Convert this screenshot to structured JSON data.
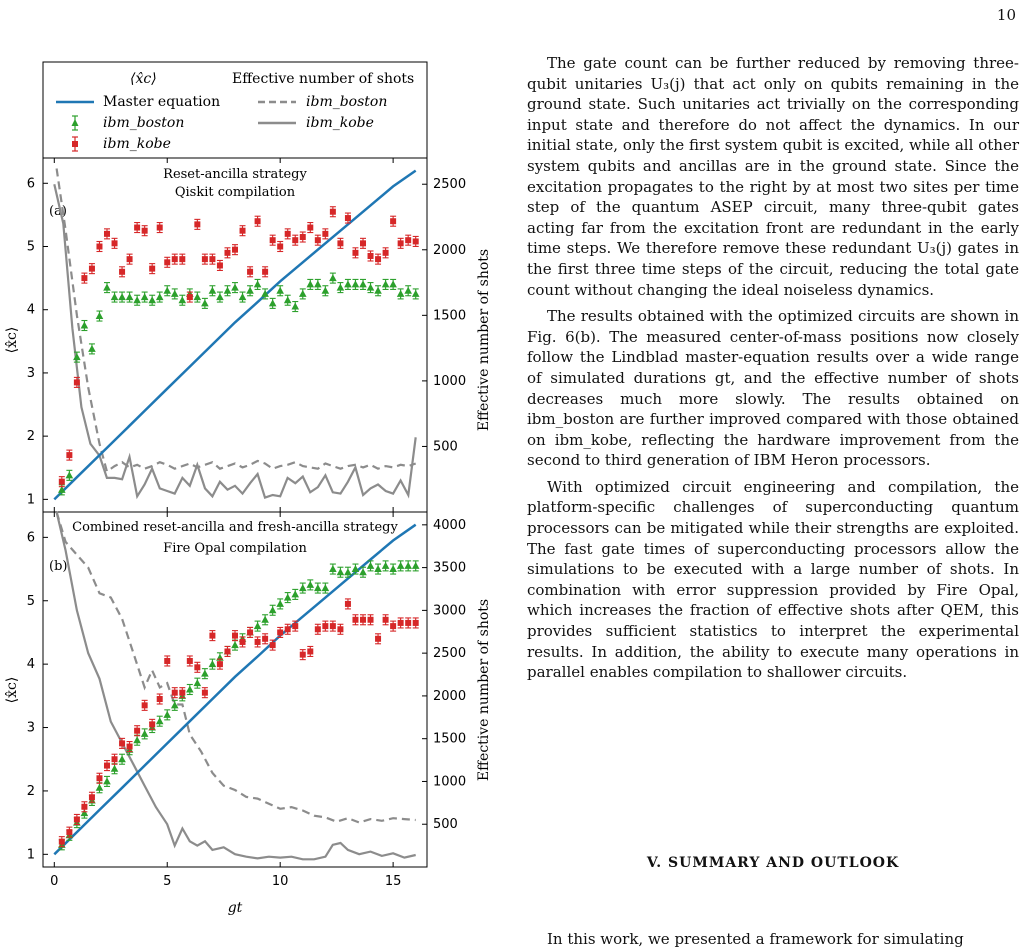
{
  "page_number": "10",
  "legend": {
    "header_left": "⟨x̂c⟩",
    "header_right": "Effective number of shots",
    "entries": [
      {
        "label": "Master equation",
        "color": "#1f77b4",
        "style": "line"
      },
      {
        "label": "ibm_boston",
        "color": "#2ca02c",
        "style": "triangle"
      },
      {
        "label": "ibm_kobe",
        "color": "#d62728",
        "style": "square"
      },
      {
        "label": "ibm_boston",
        "color": "#8c8c8c",
        "style": "dashed"
      },
      {
        "label": "ibm_kobe",
        "color": "#8c8c8c",
        "style": "solid"
      }
    ]
  },
  "chart_data": [
    {
      "type": "scatter",
      "panel_label": "(a)",
      "title": "Reset-ancilla strategy",
      "subtitle": "Qiskit compilation",
      "xlabel": "",
      "ylabel": "⟨x̂c⟩",
      "y2label": "Effective number of shots",
      "xlim": [
        -0.5,
        16.5
      ],
      "ylim": [
        0.8,
        6.4
      ],
      "y2lim": [
        0,
        2700
      ],
      "yticks": [
        1,
        2,
        3,
        4,
        5,
        6
      ],
      "y2ticks": [
        500,
        1000,
        1500,
        2000,
        2500
      ],
      "x": [
        0.333,
        0.667,
        1.0,
        1.333,
        1.667,
        2.0,
        2.333,
        2.667,
        3.0,
        3.333,
        3.667,
        4.0,
        4.333,
        4.667,
        5.0,
        5.333,
        5.667,
        6.0,
        6.333,
        6.667,
        7.0,
        7.333,
        7.667,
        8.0,
        8.333,
        8.667,
        9.0,
        9.333,
        9.667,
        10.0,
        10.333,
        10.667,
        11.0,
        11.333,
        11.667,
        12.0,
        12.333,
        12.667,
        13.0,
        13.333,
        13.667,
        14.0,
        14.333,
        14.667,
        15.0,
        15.333,
        15.667,
        16.0
      ],
      "series": [
        {
          "name": "ibm_boston",
          "axis": "left",
          "values": [
            1.15,
            1.38,
            3.25,
            3.75,
            3.38,
            3.9,
            4.35,
            4.2,
            4.2,
            4.2,
            4.15,
            4.2,
            4.15,
            4.2,
            4.3,
            4.25,
            4.15,
            4.25,
            4.2,
            4.1,
            4.3,
            4.2,
            4.3,
            4.35,
            4.2,
            4.3,
            4.4,
            4.25,
            4.1,
            4.3,
            4.15,
            4.05,
            4.25,
            4.4,
            4.4,
            4.3,
            4.5,
            4.35,
            4.4,
            4.4,
            4.4,
            4.35,
            4.3,
            4.4,
            4.4,
            4.25,
            4.3,
            4.25
          ]
        },
        {
          "name": "ibm_kobe",
          "axis": "left",
          "values": [
            1.28,
            1.7,
            2.85,
            4.5,
            4.65,
            5.0,
            5.2,
            5.05,
            4.6,
            4.8,
            5.3,
            5.25,
            4.65,
            5.3,
            4.75,
            4.8,
            4.8,
            4.2,
            5.35,
            4.8,
            4.8,
            4.7,
            4.9,
            4.95,
            5.25,
            4.6,
            5.4,
            4.6,
            5.1,
            5.0,
            5.2,
            5.1,
            5.15,
            5.3,
            5.1,
            5.2,
            5.55,
            5.05,
            5.45,
            4.9,
            5.05,
            4.85,
            4.8,
            4.9,
            5.4,
            5.05,
            5.1,
            5.08
          ]
        },
        {
          "name": "ibm_boston",
          "axis": "right",
          "x": [
            0.1,
            0.5,
            1.0,
            1.5,
            2.0,
            2.33,
            2.67,
            3.0,
            3.33,
            3.67,
            4.0,
            4.33,
            4.67,
            5.0,
            5.33,
            5.67,
            6.0,
            6.33,
            6.67,
            7.0,
            7.33,
            7.67,
            8.0,
            8.33,
            8.67,
            9.0,
            9.33,
            9.67,
            10.0,
            10.33,
            10.67,
            11.0,
            11.33,
            11.67,
            12.0,
            12.33,
            12.67,
            13.0,
            13.33,
            13.67,
            14.0,
            14.33,
            14.67,
            15.0,
            15.33,
            15.67,
            16.0
          ],
          "values": [
            2620,
            2150,
            1500,
            950,
            520,
            310,
            350,
            380,
            340,
            360,
            330,
            350,
            380,
            360,
            330,
            350,
            370,
            340,
            360,
            380,
            330,
            350,
            370,
            340,
            360,
            390,
            370,
            330,
            350,
            360,
            380,
            350,
            340,
            330,
            370,
            350,
            330,
            350,
            360,
            340,
            360,
            330,
            350,
            340,
            360,
            350,
            370
          ]
        },
        {
          "name": "ibm_kobe",
          "axis": "right",
          "x": [
            0.0,
            0.4,
            0.8,
            1.2,
            1.6,
            2.0,
            2.33,
            2.67,
            3.0,
            3.33,
            3.67,
            4.0,
            4.33,
            4.67,
            5.0,
            5.33,
            5.67,
            6.0,
            6.33,
            6.67,
            7.0,
            7.33,
            7.67,
            8.0,
            8.33,
            8.67,
            9.0,
            9.33,
            9.67,
            10.0,
            10.33,
            10.67,
            11.0,
            11.33,
            11.67,
            12.0,
            12.33,
            12.67,
            13.0,
            13.33,
            13.67,
            14.0,
            14.33,
            14.67,
            15.0,
            15.33,
            15.67,
            16.0
          ],
          "values": [
            2500,
            2200,
            1400,
            800,
            520,
            430,
            260,
            260,
            250,
            420,
            120,
            210,
            330,
            180,
            160,
            140,
            260,
            200,
            360,
            180,
            120,
            230,
            170,
            200,
            140,
            220,
            290,
            110,
            130,
            120,
            260,
            220,
            270,
            150,
            190,
            280,
            150,
            140,
            230,
            340,
            130,
            180,
            210,
            160,
            140,
            240,
            130,
            570
          ]
        },
        {
          "name": "Master equation",
          "axis": "left",
          "x": [
            0,
            1,
            2,
            3,
            4,
            5,
            6,
            7,
            8,
            9,
            10,
            11,
            12,
            13,
            14,
            15,
            16
          ],
          "values": [
            1.0,
            1.35,
            1.7,
            2.05,
            2.4,
            2.75,
            3.1,
            3.45,
            3.8,
            4.12,
            4.45,
            4.75,
            5.05,
            5.35,
            5.65,
            5.95,
            6.2
          ]
        }
      ]
    },
    {
      "type": "scatter",
      "panel_label": "(b)",
      "title": "Combined reset-ancilla and fresh-ancilla strategy",
      "subtitle": "Fire Opal compilation",
      "xlabel": "gt",
      "ylabel": "⟨x̂c⟩",
      "y2label": "Effective number of shots",
      "xlim": [
        -0.5,
        16.5
      ],
      "ylim": [
        0.8,
        6.4
      ],
      "y2lim": [
        0,
        4150
      ],
      "xticks": [
        0,
        5,
        10,
        15
      ],
      "yticks": [
        1,
        2,
        3,
        4,
        5,
        6
      ],
      "y2ticks": [
        500,
        1000,
        1500,
        2000,
        2500,
        3000,
        3500,
        4000
      ],
      "x": [
        0.333,
        0.667,
        1.0,
        1.333,
        1.667,
        2.0,
        2.333,
        2.667,
        3.0,
        3.333,
        3.667,
        4.0,
        4.333,
        4.667,
        5.0,
        5.333,
        5.667,
        6.0,
        6.333,
        6.667,
        7.0,
        7.333,
        7.667,
        8.0,
        8.333,
        8.667,
        9.0,
        9.333,
        9.667,
        10.0,
        10.333,
        10.667,
        11.0,
        11.333,
        11.667,
        12.0,
        12.333,
        12.667,
        13.0,
        13.333,
        13.667,
        14.0,
        14.333,
        14.667,
        15.0,
        15.333,
        15.667,
        16.0
      ],
      "series": [
        {
          "name": "ibm_boston",
          "axis": "left",
          "values": [
            1.15,
            1.3,
            1.5,
            1.65,
            1.85,
            2.05,
            2.15,
            2.35,
            2.5,
            2.65,
            2.8,
            2.9,
            3.0,
            3.1,
            3.2,
            3.35,
            3.5,
            3.6,
            3.7,
            3.85,
            4.0,
            4.1,
            4.2,
            4.3,
            4.4,
            4.5,
            4.6,
            4.7,
            4.85,
            4.95,
            5.05,
            5.1,
            5.2,
            5.25,
            5.2,
            5.2,
            5.5,
            5.45,
            5.45,
            5.5,
            5.45,
            5.55,
            5.5,
            5.55,
            5.5,
            5.55,
            5.55,
            5.55
          ]
        },
        {
          "name": "ibm_kobe",
          "axis": "left",
          "values": [
            1.2,
            1.35,
            1.55,
            1.75,
            1.9,
            2.2,
            2.4,
            2.5,
            2.75,
            2.7,
            2.95,
            3.35,
            3.05,
            3.45,
            4.05,
            3.55,
            3.55,
            4.05,
            3.95,
            3.55,
            4.45,
            4.0,
            4.2,
            4.45,
            4.35,
            4.5,
            4.35,
            4.4,
            4.3,
            4.5,
            4.55,
            4.6,
            4.15,
            4.2,
            4.55,
            4.6,
            4.6,
            4.55,
            4.95,
            4.7,
            4.7,
            4.7,
            4.4,
            4.7,
            4.6,
            4.65,
            4.65,
            4.65
          ]
        },
        {
          "name": "ibm_boston",
          "axis": "right",
          "x": [
            0.1,
            0.5,
            1.0,
            1.5,
            2.0,
            2.5,
            3.0,
            3.5,
            4.0,
            4.33,
            4.67,
            5.0,
            5.33,
            5.67,
            6.0,
            6.5,
            7.0,
            7.5,
            8.0,
            8.5,
            9.0,
            9.5,
            10.0,
            10.5,
            11.0,
            11.5,
            12.0,
            12.5,
            13.0,
            13.5,
            14.0,
            14.5,
            15.0,
            15.5,
            16.0
          ],
          "values": [
            4150,
            3800,
            3650,
            3500,
            3200,
            3150,
            2900,
            2500,
            2100,
            2300,
            2100,
            2150,
            1900,
            1900,
            1550,
            1350,
            1100,
            950,
            900,
            820,
            800,
            740,
            680,
            700,
            660,
            600,
            580,
            530,
            570,
            520,
            560,
            540,
            570,
            560,
            550
          ]
        },
        {
          "name": "ibm_kobe",
          "axis": "right",
          "x": [
            0.1,
            0.5,
            1.0,
            1.5,
            2.0,
            2.5,
            3.0,
            3.5,
            4.0,
            4.5,
            5.0,
            5.33,
            5.67,
            6.0,
            6.33,
            6.67,
            7.0,
            7.5,
            8.0,
            8.5,
            9.0,
            9.5,
            10.0,
            10.5,
            11.0,
            11.5,
            12.0,
            12.33,
            12.67,
            13.0,
            13.5,
            14.0,
            14.5,
            15.0,
            15.5,
            16.0
          ],
          "values": [
            4150,
            3700,
            3000,
            2500,
            2200,
            1700,
            1450,
            1200,
            950,
            700,
            500,
            250,
            450,
            300,
            250,
            300,
            200,
            230,
            150,
            120,
            100,
            120,
            110,
            120,
            90,
            90,
            120,
            260,
            280,
            200,
            150,
            180,
            130,
            160,
            110,
            140
          ]
        },
        {
          "name": "Master equation",
          "axis": "left",
          "x": [
            0,
            1,
            2,
            3,
            4,
            5,
            6,
            7,
            8,
            9,
            10,
            11,
            12,
            13,
            14,
            15,
            16
          ],
          "values": [
            1.0,
            1.35,
            1.7,
            2.05,
            2.4,
            2.75,
            3.1,
            3.45,
            3.8,
            4.12,
            4.45,
            4.75,
            5.05,
            5.35,
            5.65,
            5.95,
            6.2
          ]
        }
      ]
    }
  ],
  "paragraphs": [
    "The gate count can be further reduced by removing three-qubit unitaries U₃(j) that act only on qubits remaining in the ground state. Such unitaries act trivially on the corresponding input state and therefore do not affect the dynamics. In our initial state, only the first system qubit is excited, while all other system qubits and ancillas are in the ground state. Since the excitation propagates to the right by at most two sites per time step of the quantum ASEP circuit, many three-qubit gates acting far from the excitation front are redundant in the early time steps. We therefore remove these redundant U₃(j) gates in the first three time steps of the circuit, reducing the total gate count without changing the ideal noiseless dynamics.",
    "The results obtained with the optimized circuits are shown in Fig. 6(b). The measured center-of-mass positions now closely follow the Lindblad master-equation results over a wide range of simulated durations gt, and the effective number of shots decreases much more slowly. The results obtained on ibm_boston are further improved compared with those obtained on ibm_kobe, reflecting the hardware improvement from the second to third generation of IBM Heron processors.",
    "With optimized circuit engineering and compilation, the platform-specific challenges of superconducting quantum processors can be mitigated while their strengths are exploited. The fast gate times of superconducting processors allow the simulations to be executed with a large number of shots. In combination with error suppression provided by Fire Opal, which increases the fraction of effective shots after QEM, this provides sufficient statistics to interpret the experimental results. In addition, the ability to execute many operations in parallel enables compilation to shallower circuits."
  ],
  "section_heading": "V.   SUMMARY AND OUTLOOK",
  "last_line": "In this work, we presented a framework for simulating"
}
